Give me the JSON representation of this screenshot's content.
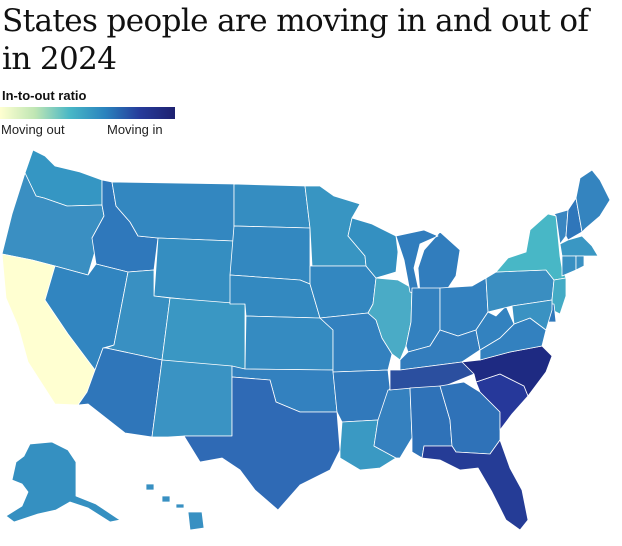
{
  "title": "States people are moving in and out of in 2024",
  "legend": {
    "title": "In-to-out ratio",
    "min_label": "Moving out",
    "max_label": "Moving in"
  },
  "colors": {
    "moving_out": "#ffffd1",
    "low": "#3e9dc4",
    "mid": "#3183bf",
    "high": "#2f64b1",
    "very_high": "#23348f"
  },
  "states": [
    {
      "code": "WA",
      "color": "#3596c3"
    },
    {
      "code": "OR",
      "color": "#3a8fc2"
    },
    {
      "code": "CA",
      "color": "#ffffd1"
    },
    {
      "code": "ID",
      "color": "#2f78bb"
    },
    {
      "code": "NV",
      "color": "#3185c0"
    },
    {
      "code": "MT",
      "color": "#3387c0"
    },
    {
      "code": "WY",
      "color": "#358ec1"
    },
    {
      "code": "UT",
      "color": "#3990c2"
    },
    {
      "code": "AZ",
      "color": "#2f76ba"
    },
    {
      "code": "CO",
      "color": "#3a97c3"
    },
    {
      "code": "NM",
      "color": "#3a93c3"
    },
    {
      "code": "ND",
      "color": "#358dc1"
    },
    {
      "code": "SD",
      "color": "#3388c0"
    },
    {
      "code": "NE",
      "color": "#3389c0"
    },
    {
      "code": "KS",
      "color": "#358bc1"
    },
    {
      "code": "OK",
      "color": "#3381bf"
    },
    {
      "code": "TX",
      "color": "#2f6ab5"
    },
    {
      "code": "MN",
      "color": "#3895c2"
    },
    {
      "code": "IA",
      "color": "#3387c0"
    },
    {
      "code": "MO",
      "color": "#3381bf"
    },
    {
      "code": "AR",
      "color": "#3179bb"
    },
    {
      "code": "LA",
      "color": "#3a99c3"
    },
    {
      "code": "WI",
      "color": "#3490c1"
    },
    {
      "code": "IL",
      "color": "#4aabc6"
    },
    {
      "code": "MS",
      "color": "#3581bf"
    },
    {
      "code": "MI",
      "color": "#317dbd"
    },
    {
      "code": "IN",
      "color": "#3381bf"
    },
    {
      "code": "KY",
      "color": "#337dbd"
    },
    {
      "code": "TN",
      "color": "#2b4f9f"
    },
    {
      "code": "AL",
      "color": "#2f72b8"
    },
    {
      "code": "OH",
      "color": "#3381bf"
    },
    {
      "code": "GA",
      "color": "#2f72b8"
    },
    {
      "code": "FL",
      "color": "#253c96"
    },
    {
      "code": "SC",
      "color": "#26389a"
    },
    {
      "code": "NC",
      "color": "#1e2a82"
    },
    {
      "code": "VA",
      "color": "#3381bf"
    },
    {
      "code": "WV",
      "color": "#3382bf"
    },
    {
      "code": "PA",
      "color": "#3a8ec1"
    },
    {
      "code": "NY",
      "color": "#48b7c6"
    },
    {
      "code": "ME",
      "color": "#3484bf"
    },
    {
      "code": "VT",
      "color": "#3a86c1"
    },
    {
      "code": "NH",
      "color": "#2f76ba"
    },
    {
      "code": "MA",
      "color": "#3a97c3"
    },
    {
      "code": "CT",
      "color": "#3890c2"
    },
    {
      "code": "RI",
      "color": "#3a90c2"
    },
    {
      "code": "NJ",
      "color": "#44abc5"
    },
    {
      "code": "DE",
      "color": "#2f78bb"
    },
    {
      "code": "MD",
      "color": "#3a92c2"
    },
    {
      "code": "AK",
      "color": "#3590c1"
    },
    {
      "code": "HI",
      "color": "#3890c2"
    }
  ]
}
